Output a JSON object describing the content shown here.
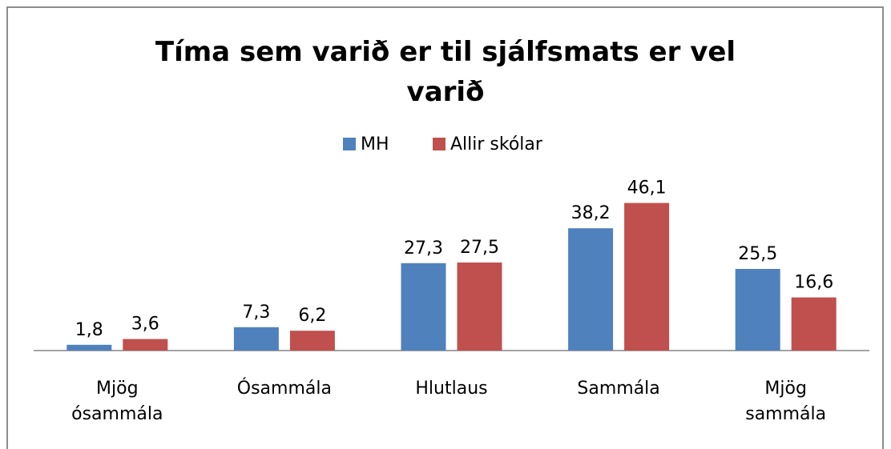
{
  "chart_data": {
    "type": "bar",
    "title": "Tíma sem varið er til sjálfsmats er vel varið",
    "categories": [
      "Mjög ósammála",
      "Ósammála",
      "Hlutlaus",
      "Sammála",
      "Mjög sammála"
    ],
    "series": [
      {
        "name": "MH",
        "color": "#4f81bd",
        "values": [
          1.8,
          7.3,
          27.3,
          38.2,
          25.5
        ],
        "value_labels": [
          "1,8",
          "7,3",
          "27,3",
          "38,2",
          "25,5"
        ]
      },
      {
        "name": "Allir skólar",
        "color": "#c0504d",
        "values": [
          3.6,
          6.2,
          27.5,
          46.1,
          16.6
        ],
        "value_labels": [
          "3,6",
          "6,2",
          "27,5",
          "46,1",
          "16,6"
        ]
      }
    ],
    "ylim": [
      0,
      50
    ]
  }
}
